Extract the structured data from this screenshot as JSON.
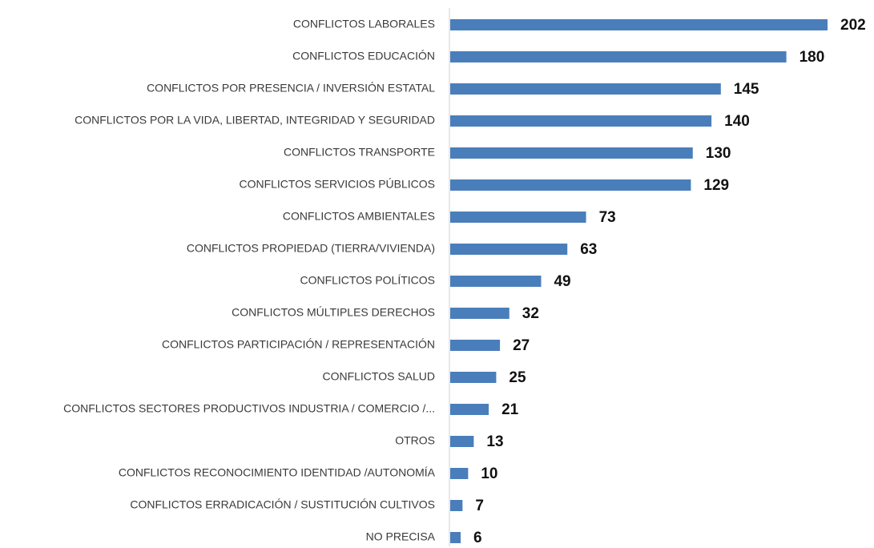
{
  "chart_data": {
    "type": "barh",
    "categories": [
      "CONFLICTOS LABORALES",
      "CONFLICTOS EDUCACIÓN",
      "CONFLICTOS POR PRESENCIA / INVERSIÓN ESTATAL",
      "CONFLICTOS POR LA VIDA, LIBERTAD, INTEGRIDAD Y SEGURIDAD",
      "CONFLICTOS TRANSPORTE",
      "CONFLICTOS SERVICIOS PÚBLICOS",
      "CONFLICTOS AMBIENTALES",
      "CONFLICTOS PROPIEDAD (TIERRA/VIVIENDA)",
      "CONFLICTOS POLÍTICOS",
      "CONFLICTOS MÚLTIPLES DERECHOS",
      "CONFLICTOS PARTICIPACIÓN / REPRESENTACIÓN",
      "CONFLICTOS SALUD",
      "CONFLICTOS SECTORES PRODUCTIVOS INDUSTRIA / COMERCIO /...",
      "OTROS",
      "CONFLICTOS RECONOCIMIENTO IDENTIDAD /AUTONOMÍA",
      "CONFLICTOS ERRADICACIÓN / SUSTITUCIÓN CULTIVOS",
      "NO PRECISA"
    ],
    "values": [
      202,
      180,
      145,
      140,
      130,
      129,
      73,
      63,
      49,
      32,
      27,
      25,
      21,
      13,
      10,
      7,
      6
    ],
    "color": "#4a7ebb"
  }
}
